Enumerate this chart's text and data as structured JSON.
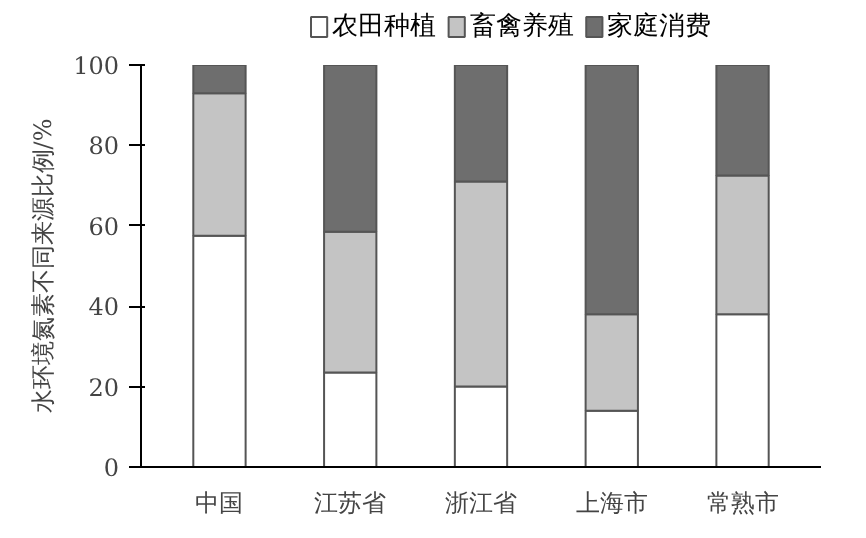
{
  "chart_data": {
    "type": "bar",
    "stacked": true,
    "categories": [
      "中国",
      "江苏省",
      "浙江省",
      "上海市",
      "常熟市"
    ],
    "series": [
      {
        "name": "农田种植",
        "color": "#ffffff",
        "values": [
          57.5,
          23.5,
          20,
          14,
          38
        ]
      },
      {
        "name": "畜禽养殖",
        "color": "#c4c4c4",
        "values": [
          35.5,
          35,
          51,
          24,
          34.5
        ]
      },
      {
        "name": "家庭消费",
        "color": "#6e6e6e",
        "values": [
          7,
          41.5,
          29,
          62,
          27.5
        ]
      }
    ],
    "ylabel": "水环境氮素不同来源比例/%",
    "ylim": [
      0,
      100
    ],
    "yticks": [
      0,
      20,
      40,
      60,
      80,
      100
    ],
    "grid": false,
    "legend": "top"
  }
}
